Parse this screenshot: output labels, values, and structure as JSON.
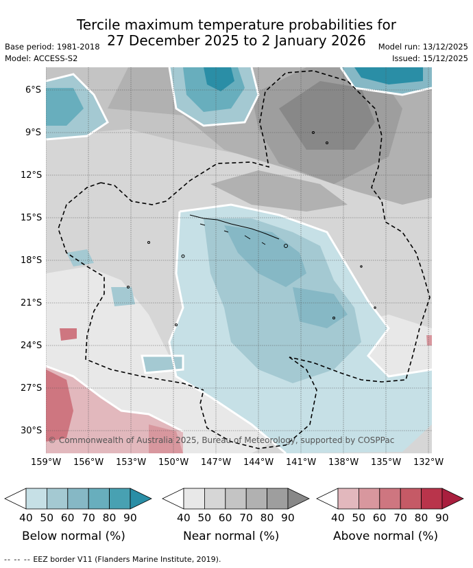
{
  "title": {
    "line1": "Tercile maximum temperature probabilities for",
    "line2": "27 December 2025 to 2 January 2026"
  },
  "meta": {
    "base_period": "Base period: 1981-2018",
    "model": "Model: ACCESS-S2",
    "model_run": "Model run: 13/12/2025",
    "issued": "Issued: 15/12/2025"
  },
  "map": {
    "copyright": "© Commonwealth of Australia 2025, Bureau of Meteorology, supported by COSPPac",
    "lat_labels": [
      "6°S",
      "9°S",
      "12°S",
      "15°S",
      "18°S",
      "21°S",
      "24°S",
      "27°S",
      "30°S"
    ],
    "lon_labels": [
      "159°W",
      "156°W",
      "153°W",
      "150°W",
      "147°W",
      "144°W",
      "141°W",
      "138°W",
      "135°W",
      "132°W"
    ],
    "eez_border_label": "EEZ border V11 (Flanders Marine Institute, 2019)."
  },
  "legend": {
    "ticks": [
      "40",
      "50",
      "60",
      "70",
      "80",
      "90"
    ],
    "below": {
      "label": "Below normal (%)",
      "colors": [
        "#c6e0e6",
        "#a4c9d2",
        "#86b8c5",
        "#68aebd",
        "#48a1b2",
        "#2a8ea6"
      ]
    },
    "near": {
      "label": "Near normal (%)",
      "colors": [
        "#e8e8e8",
        "#d6d6d6",
        "#c4c4c4",
        "#b1b1b1",
        "#9e9e9e",
        "#888888"
      ]
    },
    "above": {
      "label": "Above normal (%)",
      "colors": [
        "#e2b8bd",
        "#d8979e",
        "#ce7680",
        "#c55a66",
        "#b9344b",
        "#a91f3e"
      ]
    }
  }
}
